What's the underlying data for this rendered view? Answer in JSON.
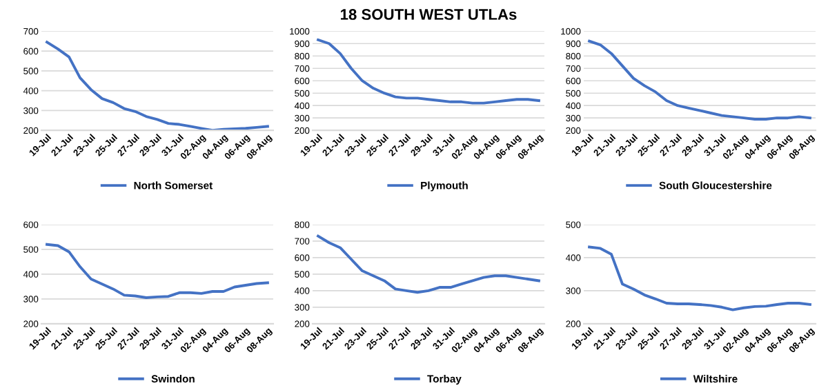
{
  "chart_data": [
    {
      "type": "line",
      "categories": [
        "19-Jul",
        null,
        "21-Jul",
        null,
        "23-Jul",
        null,
        "25-Jul",
        null,
        "27-Jul",
        null,
        "29-Jul",
        null,
        "31-Jul",
        null,
        "02-Aug",
        null,
        "04-Aug",
        null,
        "06-Aug",
        null,
        "08-Aug"
      ],
      "series": [
        {
          "name": "North Somerset",
          "color": "#4472c4",
          "values": [
            645,
            610,
            570,
            465,
            405,
            360,
            340,
            310,
            295,
            270,
            255,
            235,
            230,
            220,
            210,
            200,
            205,
            208,
            210,
            215,
            220
          ]
        }
      ],
      "ylim": [
        200,
        700
      ],
      "yticks": [
        200,
        300,
        400,
        500,
        600,
        700
      ],
      "grid": "y",
      "legend": "bottom"
    },
    {
      "type": "line",
      "title": "18 SOUTH WEST UTLAs",
      "categories": [
        "19-Jul",
        null,
        "21-Jul",
        null,
        "23-Jul",
        null,
        "25-Jul",
        null,
        "27-Jul",
        null,
        "29-Jul",
        null,
        "31-Jul",
        null,
        "02-Aug",
        null,
        "04-Aug",
        null,
        "06-Aug",
        null,
        "08-Aug"
      ],
      "series": [
        {
          "name": "Plymouth",
          "color": "#4472c4",
          "values": [
            930,
            900,
            820,
            700,
            600,
            540,
            500,
            470,
            460,
            460,
            450,
            440,
            430,
            430,
            420,
            420,
            430,
            440,
            450,
            450,
            440
          ]
        }
      ],
      "ylim": [
        200,
        1000
      ],
      "yticks": [
        200,
        300,
        400,
        500,
        600,
        700,
        800,
        900,
        1000
      ],
      "grid": "y",
      "legend": "bottom"
    },
    {
      "type": "line",
      "categories": [
        "19-Jul",
        null,
        "21-Jul",
        null,
        "23-Jul",
        null,
        "25-Jul",
        null,
        "27-Jul",
        null,
        "29-Jul",
        null,
        "31-Jul",
        null,
        "02-Aug",
        null,
        "04-Aug",
        null,
        "06-Aug",
        null,
        "08-Aug"
      ],
      "series": [
        {
          "name": "South Gloucestershire",
          "color": "#4472c4",
          "values": [
            920,
            890,
            820,
            720,
            620,
            560,
            510,
            440,
            400,
            380,
            360,
            340,
            320,
            310,
            300,
            290,
            290,
            300,
            300,
            310,
            300
          ]
        }
      ],
      "ylim": [
        200,
        1000
      ],
      "yticks": [
        200,
        300,
        400,
        500,
        600,
        700,
        800,
        900,
        1000
      ],
      "grid": "y",
      "legend": "bottom"
    },
    {
      "type": "line",
      "categories": [
        "19-Jul",
        null,
        "21-Jul",
        null,
        "23-Jul",
        null,
        "25-Jul",
        null,
        "27-Jul",
        null,
        "29-Jul",
        null,
        "31-Jul",
        null,
        "02-Aug",
        null,
        "04-Aug",
        null,
        "06-Aug",
        null,
        "08-Aug"
      ],
      "series": [
        {
          "name": "Swindon",
          "color": "#4472c4",
          "values": [
            520,
            515,
            490,
            430,
            380,
            360,
            340,
            315,
            312,
            305,
            308,
            310,
            325,
            325,
            322,
            330,
            330,
            348,
            355,
            362,
            365
          ]
        }
      ],
      "ylim": [
        200,
        600
      ],
      "yticks": [
        200,
        300,
        400,
        500,
        600
      ],
      "grid": "y",
      "legend": "bottom"
    },
    {
      "type": "line",
      "categories": [
        "19-Jul",
        null,
        "21-Jul",
        null,
        "23-Jul",
        null,
        "25-Jul",
        null,
        "27-Jul",
        null,
        "29-Jul",
        null,
        "31-Jul",
        null,
        "02-Aug",
        null,
        "04-Aug",
        null,
        "06-Aug",
        null,
        "08-Aug"
      ],
      "series": [
        {
          "name": "Torbay",
          "color": "#4472c4",
          "values": [
            730,
            690,
            660,
            590,
            520,
            490,
            460,
            410,
            400,
            390,
            400,
            420,
            420,
            440,
            460,
            480,
            490,
            490,
            480,
            470,
            460
          ]
        }
      ],
      "ylim": [
        200,
        800
      ],
      "yticks": [
        200,
        300,
        400,
        500,
        600,
        700,
        800
      ],
      "grid": "y",
      "legend": "bottom"
    },
    {
      "type": "line",
      "categories": [
        "19-Jul",
        null,
        "21-Jul",
        null,
        "23-Jul",
        null,
        "25-Jul",
        null,
        "27-Jul",
        null,
        "29-Jul",
        null,
        "31-Jul",
        null,
        "02-Aug",
        null,
        "04-Aug",
        null,
        "06-Aug",
        null,
        "08-Aug"
      ],
      "series": [
        {
          "name": "Wiltshire",
          "color": "#4472c4",
          "values": [
            432,
            428,
            410,
            320,
            305,
            287,
            275,
            262,
            260,
            260,
            258,
            255,
            250,
            242,
            248,
            252,
            253,
            258,
            262,
            262,
            258
          ]
        }
      ],
      "ylim": [
        200,
        500
      ],
      "yticks": [
        200,
        300,
        400,
        500
      ],
      "grid": "y",
      "legend": "bottom"
    }
  ]
}
